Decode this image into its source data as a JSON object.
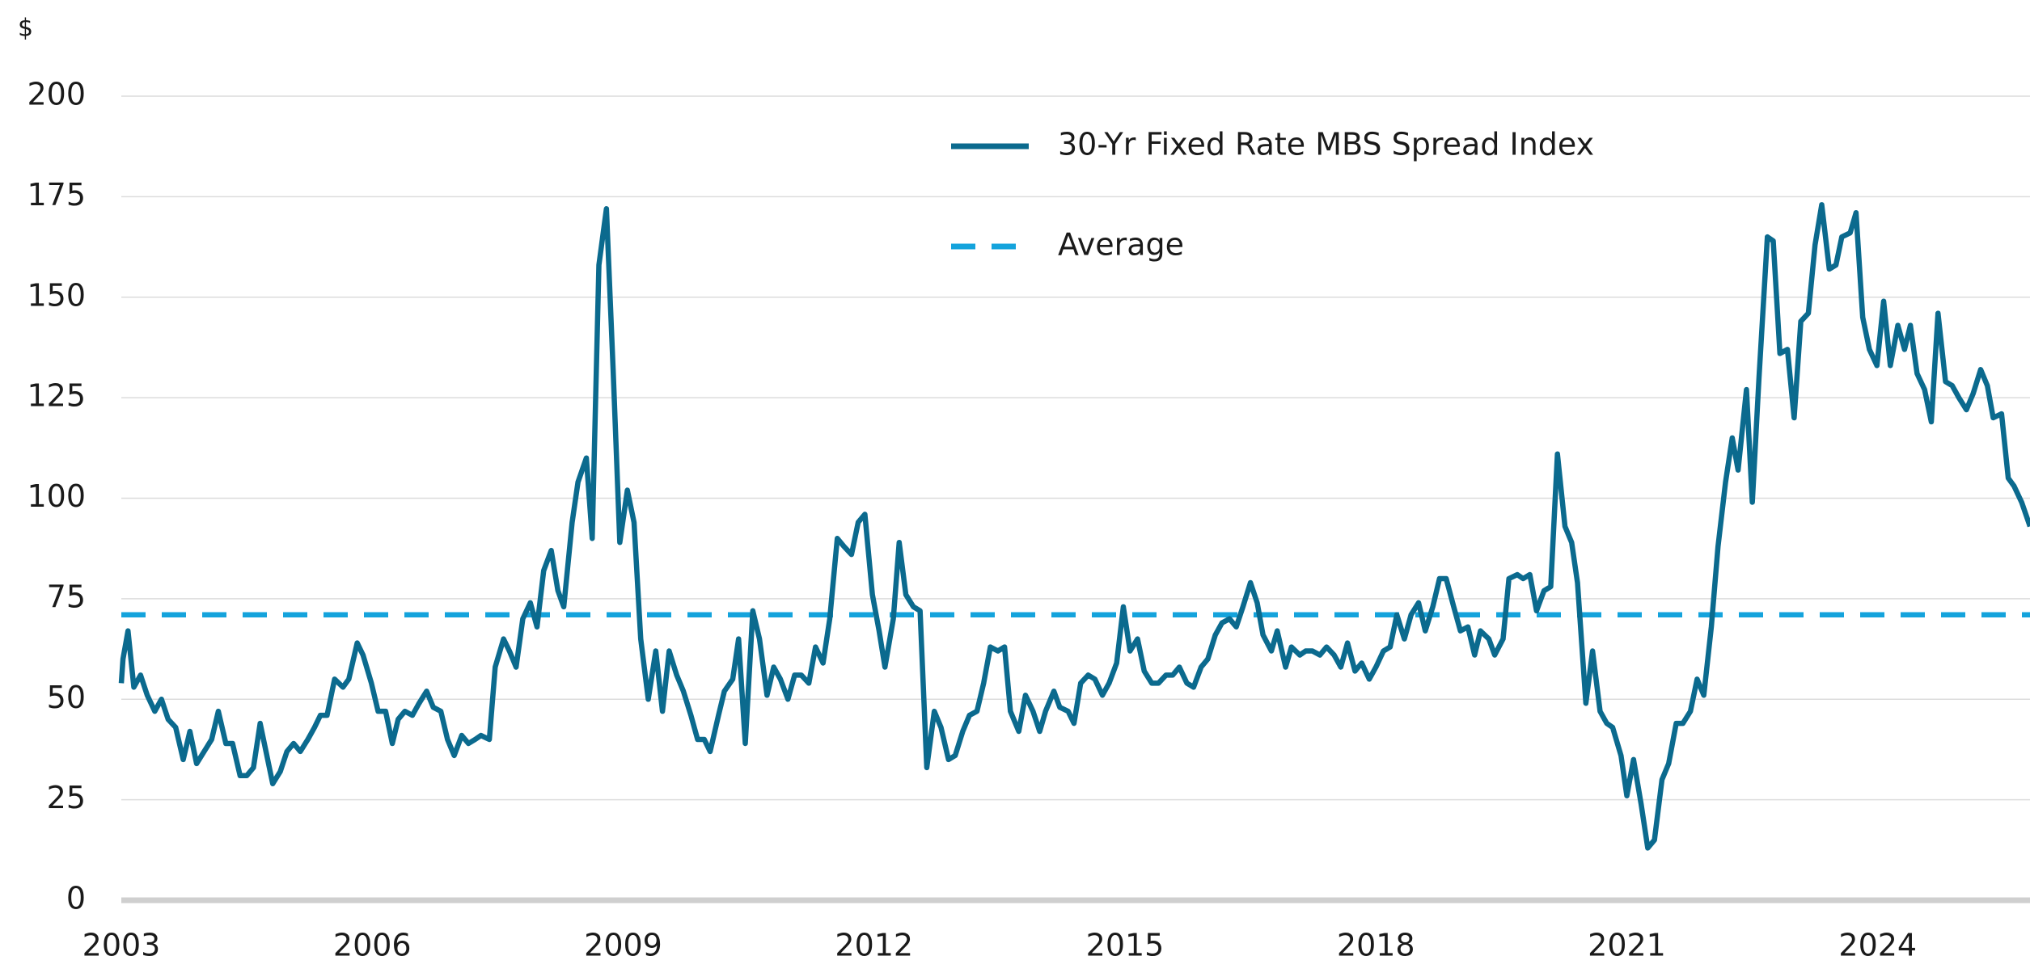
{
  "chart_data": {
    "type": "line",
    "y_unit": "$",
    "xlim": [
      2003,
      2025.82
    ],
    "xticks": [
      2003,
      2006,
      2009,
      2012,
      2015,
      2018,
      2021,
      2024
    ],
    "ylim": [
      0,
      200
    ],
    "yticks": [
      0,
      25,
      50,
      75,
      100,
      125,
      150,
      175,
      200
    ],
    "grid": true,
    "legend": "top-center",
    "series": [
      {
        "name": "30-Yr Fixed Rate MBS Spread Index",
        "color": "#0b6a8e",
        "dashed": false,
        "x": [
          2003.0,
          2003.02,
          2003.08,
          2003.15,
          2003.23,
          2003.31,
          2003.4,
          2003.48,
          2003.56,
          2003.65,
          2003.74,
          2003.82,
          2003.9,
          2003.99,
          2004.08,
          2004.16,
          2004.25,
          2004.33,
          2004.42,
          2004.5,
          2004.58,
          2004.66,
          2004.73,
          2004.81,
          2004.9,
          2004.98,
          2005.06,
          2005.14,
          2005.23,
          2005.31,
          2005.38,
          2005.46,
          2005.55,
          2005.65,
          2005.72,
          2005.82,
          2005.89,
          2005.99,
          2006.07,
          2006.16,
          2006.24,
          2006.31,
          2006.39,
          2006.48,
          2006.56,
          2006.65,
          2006.73,
          2006.82,
          2006.9,
          2006.98,
          2007.07,
          2007.15,
          2007.23,
          2007.3,
          2007.4,
          2007.47,
          2007.57,
          2007.64,
          2007.72,
          2007.8,
          2007.89,
          2007.97,
          2008.05,
          2008.14,
          2008.22,
          2008.29,
          2008.39,
          2008.46,
          2008.56,
          2008.63,
          2008.71,
          2008.8,
          2008.88,
          2008.96,
          2009.05,
          2009.13,
          2009.21,
          2009.3,
          2009.39,
          2009.47,
          2009.55,
          2009.64,
          2009.72,
          2009.81,
          2009.89,
          2009.97,
          2010.04,
          2010.14,
          2010.21,
          2010.31,
          2010.38,
          2010.46,
          2010.55,
          2010.63,
          2010.72,
          2010.8,
          2010.88,
          2010.97,
          2011.05,
          2011.13,
          2011.22,
          2011.3,
          2011.39,
          2011.47,
          2011.56,
          2011.64,
          2011.73,
          2011.81,
          2011.89,
          2011.98,
          2012.06,
          2012.13,
          2012.23,
          2012.3,
          2012.38,
          2012.47,
          2012.55,
          2012.63,
          2012.72,
          2012.8,
          2012.89,
          2012.97,
          2013.06,
          2013.14,
          2013.23,
          2013.31,
          2013.39,
          2013.48,
          2013.56,
          2013.63,
          2013.73,
          2013.81,
          2013.9,
          2013.98,
          2014.05,
          2014.15,
          2014.22,
          2014.32,
          2014.39,
          2014.47,
          2014.56,
          2014.64,
          2014.73,
          2014.81,
          2014.9,
          2014.98,
          2015.06,
          2015.15,
          2015.23,
          2015.32,
          2015.4,
          2015.49,
          2015.57,
          2015.65,
          2015.74,
          2015.82,
          2015.91,
          2015.99,
          2016.08,
          2016.16,
          2016.25,
          2016.33,
          2016.41,
          2016.5,
          2016.58,
          2016.65,
          2016.75,
          2016.82,
          2016.92,
          2016.99,
          2017.09,
          2017.16,
          2017.24,
          2017.33,
          2017.41,
          2017.5,
          2017.58,
          2017.66,
          2017.75,
          2017.83,
          2017.92,
          2018.0,
          2018.09,
          2018.17,
          2018.25,
          2018.34,
          2018.42,
          2018.51,
          2018.59,
          2018.68,
          2018.76,
          2018.84,
          2018.93,
          2019.01,
          2019.1,
          2019.18,
          2019.25,
          2019.35,
          2019.42,
          2019.52,
          2019.59,
          2019.69,
          2019.76,
          2019.84,
          2019.92,
          2020.01,
          2020.09,
          2020.17,
          2020.26,
          2020.34,
          2020.41,
          2020.51,
          2020.59,
          2020.68,
          2020.76,
          2020.83,
          2020.93,
          2021.0,
          2021.08,
          2021.17,
          2021.25,
          2021.33,
          2021.42,
          2021.5,
          2021.59,
          2021.67,
          2021.76,
          2021.84,
          2021.92,
          2022.01,
          2022.09,
          2022.18,
          2022.26,
          2022.33,
          2022.43,
          2022.5,
          2022.58,
          2022.68,
          2022.75,
          2022.83,
          2022.92,
          2023.0,
          2023.08,
          2023.17,
          2023.25,
          2023.33,
          2023.42,
          2023.5,
          2023.57,
          2023.67,
          2023.74,
          2023.82,
          2023.9,
          2023.99,
          2024.07,
          2024.15,
          2024.24,
          2024.32,
          2024.39,
          2024.47,
          2024.56,
          2024.64,
          2024.72,
          2024.81,
          2024.89,
          2024.97,
          2025.06,
          2025.14,
          2025.23,
          2025.31,
          2025.38,
          2025.48,
          2025.56,
          2025.63,
          2025.72,
          2025.82
        ],
        "values": [
          54,
          60,
          67,
          53,
          56,
          51,
          47,
          50,
          45,
          43,
          35,
          42,
          34,
          37,
          40,
          47,
          39,
          39,
          31,
          31,
          33,
          44,
          37,
          29,
          32,
          37,
          39,
          37,
          40,
          43,
          46,
          46,
          55,
          53,
          55,
          64,
          61,
          54,
          47,
          47,
          39,
          45,
          47,
          46,
          49,
          52,
          48,
          47,
          40,
          36,
          41,
          39,
          40,
          41,
          40,
          58,
          65,
          62,
          58,
          70,
          74,
          68,
          82,
          87,
          77,
          73,
          94,
          104,
          110,
          90,
          158,
          172,
          132,
          89,
          102,
          94,
          65,
          50,
          62,
          47,
          62,
          56,
          52,
          46,
          40,
          40,
          37,
          46,
          52,
          55,
          65,
          39,
          72,
          65,
          51,
          58,
          55,
          50,
          56,
          56,
          54,
          63,
          59,
          70,
          90,
          88,
          86,
          94,
          96,
          76,
          67,
          58,
          70,
          89,
          76,
          73,
          72,
          33,
          47,
          43,
          35,
          36,
          42,
          46,
          47,
          54,
          63,
          62,
          63,
          47,
          42,
          51,
          47,
          42,
          47,
          52,
          48,
          47,
          44,
          54,
          56,
          55,
          51,
          54,
          59,
          73,
          62,
          65,
          57,
          54,
          54,
          56,
          56,
          58,
          54,
          53,
          58,
          60,
          66,
          69,
          70,
          68,
          73,
          79,
          74,
          66,
          62,
          67,
          58,
          63,
          61,
          62,
          62,
          61,
          63,
          61,
          58,
          64,
          57,
          59,
          55,
          58,
          62,
          63,
          71,
          65,
          71,
          74,
          67,
          73,
          80,
          80,
          73,
          67,
          68,
          61,
          67,
          65,
          61,
          65,
          80,
          81,
          80,
          81,
          72,
          77,
          78,
          111,
          93,
          89,
          79,
          49,
          62,
          47,
          44,
          43,
          36,
          26,
          35,
          24,
          13,
          15,
          30,
          34,
          44,
          44,
          47,
          55,
          51,
          68,
          88,
          104,
          115,
          107,
          127,
          99,
          130,
          165,
          164,
          136,
          137,
          120,
          144,
          146,
          163,
          173,
          157,
          158,
          165,
          166,
          171,
          145,
          137,
          133,
          149,
          133,
          143,
          137,
          143,
          131,
          127,
          119,
          146,
          129,
          128,
          125,
          122,
          126,
          132,
          128,
          120,
          121,
          105,
          103,
          99,
          93
        ]
      },
      {
        "name": "Average",
        "color": "#14a3dc",
        "dashed": true,
        "x": [
          2003,
          2025.82
        ],
        "values": [
          71,
          71
        ]
      }
    ]
  }
}
